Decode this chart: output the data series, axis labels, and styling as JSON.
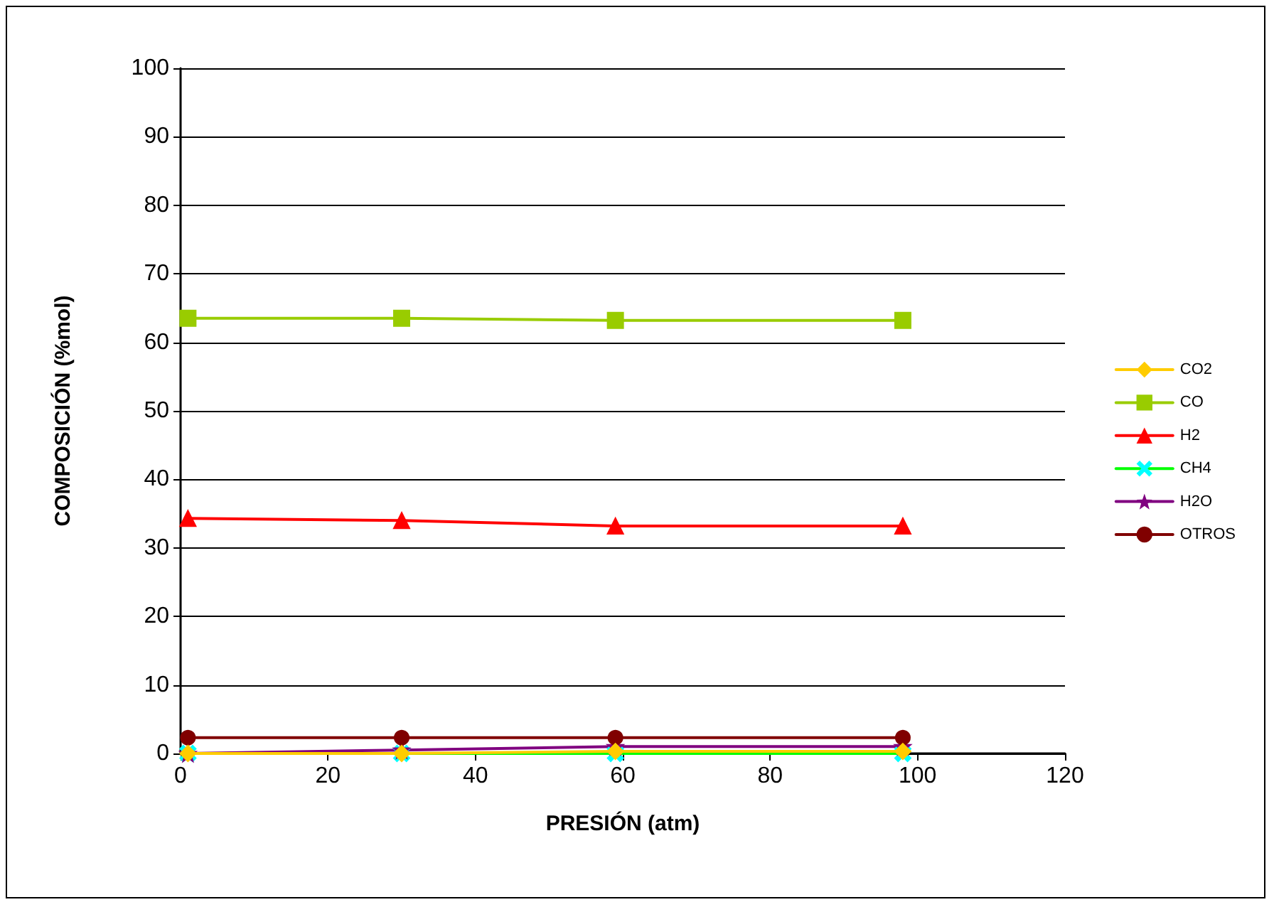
{
  "chart_data": {
    "type": "line",
    "xlabel": "PRESIÓN (atm)",
    "ylabel": "COMPOSICIÓN (%mol)",
    "x": [
      1,
      30,
      59,
      98
    ],
    "series": [
      {
        "name": "CO2",
        "color": "#ffcc00",
        "marker": "diamond",
        "values": [
          0,
          0,
          0.3,
          0.3
        ]
      },
      {
        "name": "CO",
        "color": "#99cc00",
        "marker": "square",
        "values": [
          63.5,
          63.5,
          63.2,
          63.2
        ]
      },
      {
        "name": "H2",
        "color": "#ff0000",
        "marker": "triangle",
        "values": [
          34.3,
          34,
          33.2,
          33.2
        ]
      },
      {
        "name": "CH4",
        "color": "#00ff00",
        "marker": "cross",
        "values": [
          0,
          0,
          0,
          0
        ]
      },
      {
        "name": "H2O",
        "color": "#800080",
        "marker": "star",
        "values": [
          0,
          0.5,
          1,
          1
        ]
      },
      {
        "name": "OTROS",
        "color": "#800000",
        "marker": "circle",
        "values": [
          2.3,
          2.3,
          2.3,
          2.3
        ]
      }
    ],
    "xlim": [
      0,
      120
    ],
    "xticks": [
      0,
      20,
      40,
      60,
      80,
      100,
      120
    ],
    "ylim": [
      0,
      100
    ],
    "yticks": [
      0,
      10,
      20,
      30,
      40,
      50,
      60,
      70,
      80,
      90,
      100
    ],
    "grid": "y",
    "legend": "right"
  }
}
